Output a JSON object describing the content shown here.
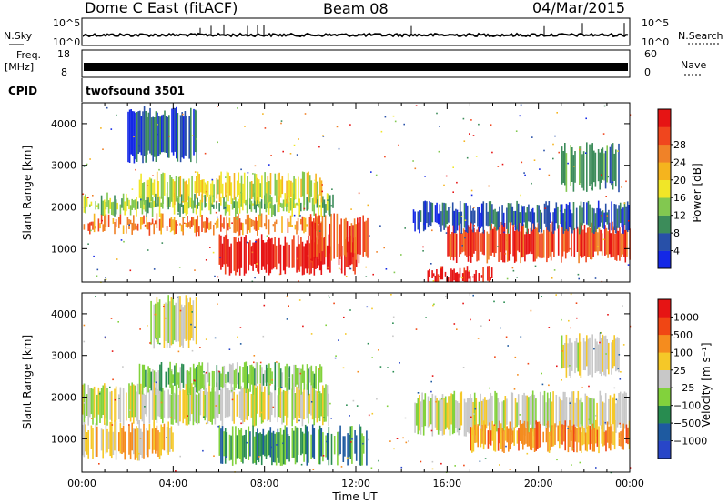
{
  "header": {
    "title": "Dome C East (fitACF)",
    "beam": "Beam 08",
    "date": "04/Mar/2015"
  },
  "nsky_panel": {
    "left_label": "N.Sky",
    "left_ticks": [
      "10^5",
      "10^0"
    ],
    "right_label": "N.Search",
    "right_ticks": [
      "10^5",
      "10^0"
    ]
  },
  "freq_panel": {
    "left_label_1": "Freq.",
    "left_label_2": "[MHz]",
    "left_ticks": [
      "18",
      "8"
    ],
    "right_label": "Nave",
    "right_ticks": [
      "60",
      "0"
    ]
  },
  "cpid_panel": {
    "label": "CPID",
    "value": "twofsound 3501"
  },
  "colors": {
    "power": [
      "#1428e6",
      "#2850a8",
      "#3c8c5a",
      "#82c850",
      "#f0e628",
      "#f5b41e",
      "#f08228",
      "#f0461e",
      "#e61414"
    ],
    "velocity": [
      "#e61414",
      "#f04614",
      "#f58c1e",
      "#f5c828",
      "#c8c8c8",
      "#82d23c",
      "#288c50",
      "#1e5aa0",
      "#2846c8"
    ]
  },
  "chart_data": [
    {
      "type": "heatmap",
      "name": "power",
      "ylabel": "Slant Range [km]",
      "yticks": [
        "1000",
        "2000",
        "3000",
        "4000"
      ],
      "ylim": [
        200,
        4500
      ],
      "xticks": [
        "00:00",
        "04:00",
        "08:00",
        "12:00",
        "16:00",
        "20:00",
        "00:00"
      ],
      "xlim_hours": [
        0,
        24
      ],
      "colorbar_label": "Power [dB]",
      "colorbar_ticks": [
        "4",
        "8",
        "12",
        "16",
        "20",
        "24",
        "28"
      ],
      "bands": [
        {
          "t0": 0.0,
          "t1": 10.5,
          "r0": 1450,
          "r1": 1700,
          "level": 6
        },
        {
          "t0": 6.0,
          "t1": 12.0,
          "r0": 500,
          "r1": 1200,
          "level": 8
        },
        {
          "t0": 10.0,
          "t1": 12.5,
          "r0": 800,
          "r1": 1700,
          "level": 7
        },
        {
          "t0": 0.0,
          "t1": 11.0,
          "r0": 1900,
          "r1": 2200,
          "level": 3
        },
        {
          "t0": 2.5,
          "t1": 10.5,
          "r0": 2200,
          "r1": 2700,
          "level": 4
        },
        {
          "t0": 2.0,
          "t1": 5.0,
          "r0": 3200,
          "r1": 4300,
          "level": 1
        },
        {
          "t0": 16.0,
          "t1": 24.0,
          "r0": 800,
          "r1": 1500,
          "level": 7
        },
        {
          "t0": 14.5,
          "t1": 24.0,
          "r0": 1500,
          "r1": 2000,
          "level": 1
        },
        {
          "t0": 15.0,
          "t1": 18.0,
          "r0": 200,
          "r1": 450,
          "level": 8
        },
        {
          "t0": 21.0,
          "t1": 23.5,
          "r0": 2500,
          "r1": 3400,
          "level": 2
        }
      ]
    },
    {
      "type": "heatmap",
      "name": "velocity",
      "ylabel": "Slant Range [km]",
      "yticks": [
        "1000",
        "2000",
        "3000",
        "4000"
      ],
      "ylim": [
        200,
        4500
      ],
      "xticks": [
        "00:00",
        "04:00",
        "08:00",
        "12:00",
        "16:00",
        "20:00",
        "00:00"
      ],
      "xlabel": "Time UT",
      "xlim_hours": [
        0,
        24
      ],
      "colorbar_label": "Velocity [m s⁻¹]",
      "colorbar_ticks": [
        "1000",
        "500",
        "100",
        "25",
        "−25",
        "−100",
        "−500",
        "−1000"
      ],
      "bands": [
        {
          "t0": 0.0,
          "t1": 11.0,
          "r0": 1450,
          "r1": 2200,
          "level": 4
        },
        {
          "t0": 2.5,
          "t1": 10.5,
          "r0": 2200,
          "r1": 2700,
          "level": 3
        },
        {
          "t0": 6.0,
          "t1": 12.5,
          "r0": 500,
          "r1": 1200,
          "level": 2
        },
        {
          "t0": 0.0,
          "t1": 4.0,
          "r0": 600,
          "r1": 1300,
          "level": 5
        },
        {
          "t0": 14.5,
          "t1": 24.0,
          "r0": 1200,
          "r1": 2000,
          "level": 4
        },
        {
          "t0": 17.0,
          "t1": 24.0,
          "r0": 800,
          "r1": 1300,
          "level": 6
        },
        {
          "t0": 3.0,
          "t1": 5.0,
          "r0": 3300,
          "r1": 4300,
          "level": 4
        },
        {
          "t0": 21.0,
          "t1": 23.5,
          "r0": 2600,
          "r1": 3400,
          "level": 4
        }
      ]
    }
  ],
  "footer": {
    "xlabel": "Time UT"
  }
}
